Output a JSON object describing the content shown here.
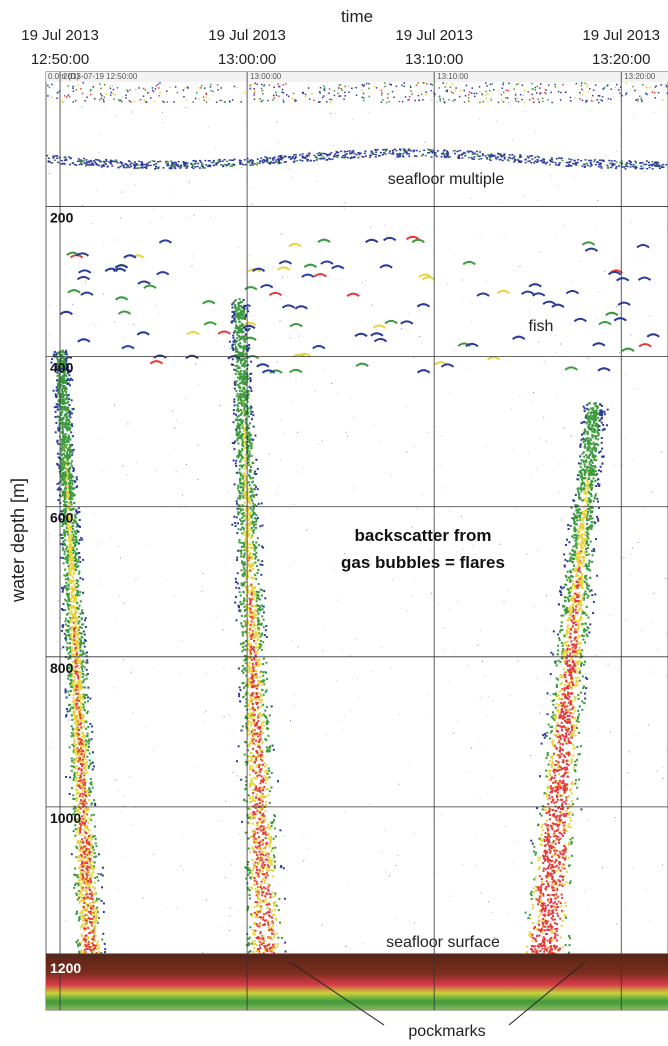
{
  "chart_data": {
    "type": "heatmap",
    "xlabel": "time",
    "ylabel": "water depth [m]",
    "x_ticks": [
      {
        "date": "19 Jul 2013",
        "time": "12:50:00"
      },
      {
        "date": "19 Jul 2013",
        "time": "13:00:00"
      },
      {
        "date": "19 Jul 2013",
        "time": "13:10:00"
      },
      {
        "date": "19 Jul 2013",
        "time": "13:20:00"
      }
    ],
    "y_ticks": [
      "200",
      "400",
      "600",
      "800",
      "1000",
      "1200"
    ],
    "y_tick_values": [
      200,
      400,
      600,
      800,
      1000,
      1200
    ],
    "y_range": [
      10,
      1260
    ],
    "x_range": [
      "12:49:15",
      "13:22:30"
    ],
    "grid": true,
    "header_text": [
      "0.0m (D)",
      "2013-07-19 12:50:00",
      "13:00:00",
      "13:10:00",
      "13:20:00"
    ],
    "annotations": {
      "seafloor_multiple": "seafloor multiple",
      "fish": "fish",
      "flares_line1": "backscatter from",
      "flares_line2": "gas bubbles = flares",
      "seafloor_surface": "seafloor surface",
      "pockmarks": "pockmarks"
    },
    "features": {
      "flares": [
        {
          "start_time": "12:50:00",
          "top_depth": 380,
          "bottom_depth": 1190
        },
        {
          "start_time": "12:59:30",
          "top_depth": 310,
          "bottom_depth": 1190
        },
        {
          "start_time": "13:18:30",
          "top_depth": 450,
          "bottom_depth": 1190
        }
      ],
      "seafloor_depth": 1190,
      "seafloor_multiple_depth": 125
    },
    "colors": {
      "weak": "#2b3a9c",
      "medium": "#3a9a3c",
      "strong": "#e8d33a",
      "strongest": "#e33a3a",
      "seafloor": "#6b2b1c"
    }
  }
}
